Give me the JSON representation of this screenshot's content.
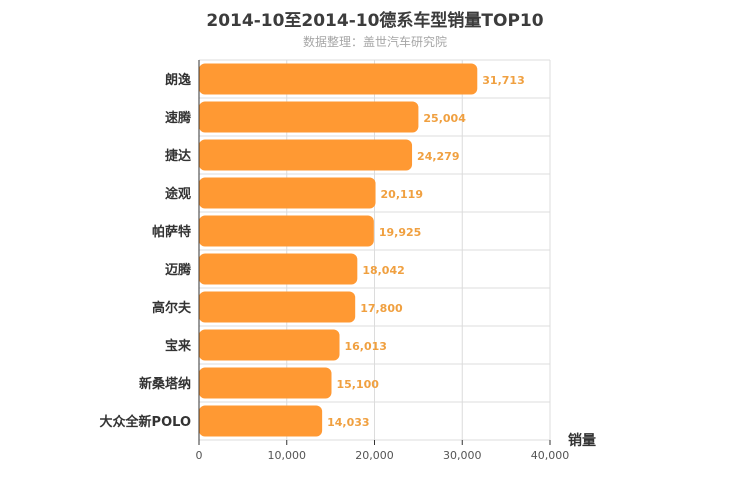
{
  "chart_data": {
    "type": "bar",
    "orientation": "horizontal",
    "title": "2014-10至2014-10德系车型销量TOP10",
    "subtitle": "数据整理：盖世汽车研究院",
    "xlabel": "销量",
    "categories": [
      "朗逸",
      "速腾",
      "捷达",
      "途观",
      "帕萨特",
      "迈腾",
      "高尔夫",
      "宝来",
      "新桑塔纳",
      "大众全新POLO"
    ],
    "values": [
      31713,
      25004,
      24279,
      20119,
      19925,
      18042,
      17800,
      16013,
      15100,
      14033
    ],
    "value_labels": [
      "31,713",
      "25,004",
      "24,279",
      "20,119",
      "19,925",
      "18,042",
      "17,800",
      "16,013",
      "15,100",
      "14,033"
    ],
    "xlim": [
      0,
      40000
    ],
    "xticks": [
      0,
      10000,
      20000,
      30000,
      40000
    ],
    "xtick_labels": [
      "0",
      "10,000",
      "20,000",
      "30,000",
      "40,000"
    ],
    "grid": true,
    "bar_color": "#ff9933",
    "label_color": "#f0a040"
  }
}
